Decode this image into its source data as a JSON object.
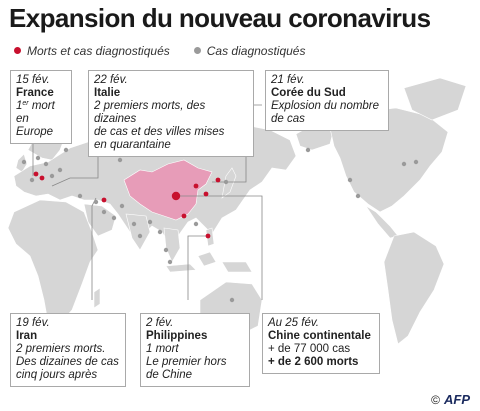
{
  "title": "Expansion du nouveau coronavirus",
  "legend": {
    "deaths": {
      "label": "Morts et cas diagnostiqués",
      "color": "#c8102e"
    },
    "cases": {
      "label": "Cas diagnostiqués",
      "color": "#9a9a9a"
    }
  },
  "colors": {
    "land": "#d6d6d6",
    "china": "#e79cb8",
    "ocean": "#ffffff"
  },
  "boxes": {
    "france": {
      "date": "15 fév.",
      "place": "France",
      "line1_pre": "1",
      "line1_sup": "er",
      "line1_post": " mort",
      "line2": "en Europe"
    },
    "italie": {
      "date": "22 fév.",
      "place": "Italie",
      "line1": "2 premiers morts, des dizaines",
      "line2": "de cas et des villes mises",
      "line3": "en quarantaine"
    },
    "coree": {
      "date": "21 fév.",
      "place": "Corée du Sud",
      "line1": "Explosion du nombre",
      "line2": "de cas"
    },
    "iran": {
      "date": "19 fév.",
      "place": "Iran",
      "line1": "2 premiers morts.",
      "line2": "Des dizaines de cas",
      "line3": "cinq jours après"
    },
    "philippines": {
      "date": "2 fév.",
      "place": "Philippines",
      "line1": "1 mort",
      "line2": "Le premier hors",
      "line3": "de Chine"
    },
    "chine": {
      "date": "Au 25 fév.",
      "place": "Chine continentale",
      "line1": "+ de 77 000 cas",
      "line2": "+ de 2 600 morts"
    }
  },
  "credit": {
    "symbol": "©",
    "logo": "AFP"
  }
}
